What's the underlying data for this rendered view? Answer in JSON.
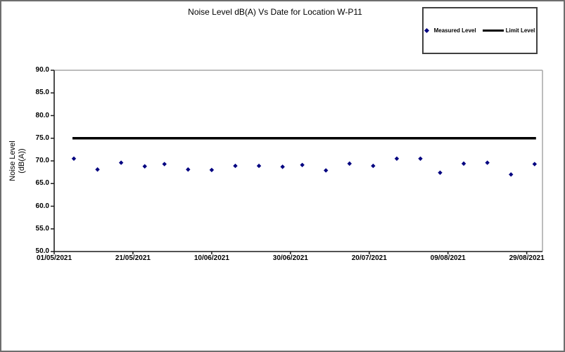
{
  "title": "Noise Level dB(A) Vs Date for Location W-P11",
  "legend": {
    "items": [
      {
        "label": "Measured Level",
        "marker": "diamond",
        "color": "#000080"
      },
      {
        "label": "Limit Level",
        "marker": "line",
        "color": "#000000"
      }
    ]
  },
  "y_axis": {
    "title_lines": [
      "Noise Level",
      "(dB(A))"
    ],
    "tick_labels": [
      "90.0",
      "85.0",
      "80.0",
      "75.0",
      "70.0",
      "65.0",
      "60.0",
      "55.0",
      "50.0"
    ]
  },
  "x_axis": {
    "tick_labels": [
      "01/05/2021",
      "21/05/2021",
      "10/06/2021",
      "30/06/2021",
      "20/07/2021",
      "09/08/2021",
      "29/08/2021"
    ]
  },
  "chart_data": {
    "type": "scatter",
    "title": "Noise Level dB(A) Vs Date for Location W-P11",
    "xlabel": "",
    "ylabel": "Noise Level (dB(A))",
    "ylim": [
      50,
      90
    ],
    "ytick_step": 5,
    "xlim": [
      "01/05/2021",
      "02/09/2021"
    ],
    "xticks": [
      "01/05/2021",
      "21/05/2021",
      "10/06/2021",
      "30/06/2021",
      "20/07/2021",
      "09/08/2021",
      "29/08/2021"
    ],
    "grid": false,
    "legend_position": "top-right",
    "series": [
      {
        "name": "Measured Level",
        "type": "scatter",
        "marker": "diamond",
        "color": "#000080",
        "x": [
          "06/05/2021",
          "12/05/2021",
          "18/05/2021",
          "24/05/2021",
          "29/05/2021",
          "04/06/2021",
          "10/06/2021",
          "16/06/2021",
          "22/06/2021",
          "28/06/2021",
          "03/07/2021",
          "09/07/2021",
          "15/07/2021",
          "21/07/2021",
          "27/07/2021",
          "02/08/2021",
          "07/08/2021",
          "13/08/2021",
          "19/08/2021",
          "25/08/2021",
          "31/08/2021"
        ],
        "y": [
          70.5,
          68.1,
          69.6,
          68.8,
          69.3,
          68.1,
          68.0,
          68.9,
          68.9,
          68.7,
          69.1,
          67.9,
          69.4,
          68.9,
          70.5,
          70.5,
          67.4,
          69.4,
          69.6,
          67.0,
          69.3
        ]
      },
      {
        "name": "Limit Level",
        "type": "line",
        "color": "#000000",
        "y_value": 75.0,
        "x_span": [
          "06/05/2021",
          "31/08/2021"
        ]
      }
    ]
  }
}
